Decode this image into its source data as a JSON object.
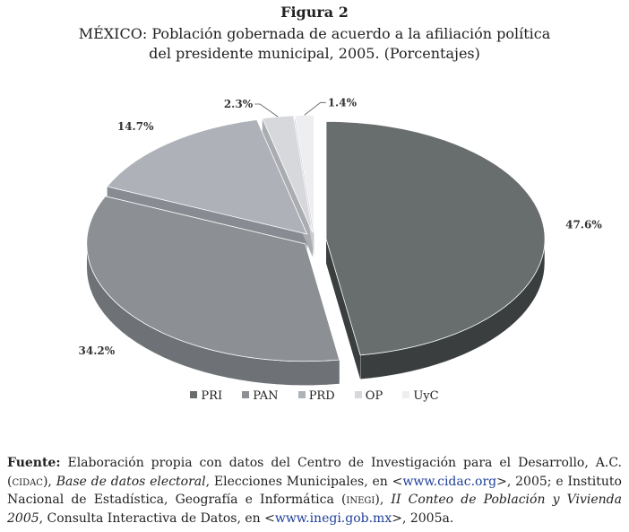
{
  "figure": {
    "label": "Figura 2",
    "title_line1": "MÉXICO: Población gobernada de acuerdo a la afiliación política",
    "title_line2": "del presidente municipal, 2005. (Porcentajes)"
  },
  "chart_data": {
    "type": "pie",
    "categories": [
      "PRI",
      "PAN",
      "PRD",
      "OP",
      "UyC"
    ],
    "values": [
      47.6,
      34.2,
      14.7,
      2.3,
      1.4
    ],
    "value_labels": [
      "47.6%",
      "34.2%",
      "14.7%",
      "2.3%",
      "1.4%"
    ],
    "colors": [
      "#686d6d",
      "#8c9095",
      "#aeb2b8",
      "#d6d8dc",
      "#eeeef1"
    ],
    "side_colors": [
      "#3a3e3e",
      "#6e7277",
      "#888c92",
      "#aaacb1",
      "#c8cacd"
    ],
    "style": "3D exploded pie",
    "legend_position": "bottom"
  },
  "legend": {
    "items": [
      "PRI",
      "PAN",
      "PRD",
      "OP",
      "UyC"
    ]
  },
  "source": {
    "label": "Fuente:",
    "t1": " Elaboración propia con datos del Centro de Investigación para el Desarrollo, A.C. (",
    "t2": "cidac",
    "t3": "), ",
    "t4": "Base de datos electoral",
    "t5": ", Elecciones Municipales, en <",
    "t6": "www.cidac.org",
    "t7": ">, 2005; e Instituto Nacional de Estadística, Geografía e Informática (",
    "t8": "inegi",
    "t9": "), ",
    "t10": "II Conteo de Población y Vivienda 2005",
    "t11": ", Consulta Interactiva de Datos, en <",
    "t12": "www.inegi.gob.mx",
    "t13": ">, 2005a."
  }
}
